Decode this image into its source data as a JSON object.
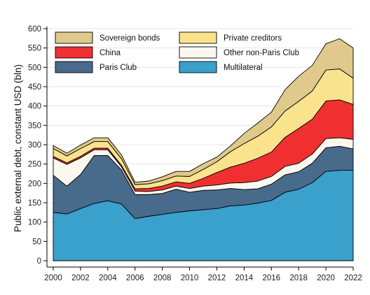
{
  "chart_data": {
    "type": "area",
    "stacked": true,
    "ylabel": "Public external debt, constant USD (bln)",
    "xlabel": "",
    "ylim": [
      0,
      600
    ],
    "yticks": [
      0,
      50,
      100,
      150,
      200,
      250,
      300,
      350,
      400,
      450,
      500,
      550,
      600
    ],
    "xlim": [
      2000,
      2022
    ],
    "xticks": [
      2000,
      2002,
      2004,
      2006,
      2008,
      2010,
      2012,
      2014,
      2016,
      2018,
      2020,
      2022
    ],
    "grid": true,
    "legend_position": "top, inside plot, two columns",
    "x": [
      2000,
      2001,
      2002,
      2003,
      2004,
      2005,
      2006,
      2007,
      2008,
      2009,
      2010,
      2011,
      2012,
      2013,
      2014,
      2015,
      2016,
      2017,
      2018,
      2019,
      2020,
      2021,
      2022
    ],
    "series": [
      {
        "name": "Multilateral",
        "color": "#3aa0cc",
        "values": [
          125,
          121,
          135,
          148,
          155,
          147,
          109,
          115,
          120,
          125,
          129,
          132,
          135,
          142,
          144,
          149,
          156,
          177,
          185,
          202,
          231,
          234,
          234
        ]
      },
      {
        "name": "Paris Club",
        "color": "#486b8c",
        "values": [
          96,
          72,
          88,
          124,
          117,
          88,
          62,
          56,
          54,
          60,
          48,
          50,
          48,
          45,
          40,
          37,
          42,
          45,
          45,
          50,
          61,
          62,
          55
        ]
      },
      {
        "name": "Other non-Paris Club",
        "color": "#fdf8ef",
        "values": [
          45,
          56,
          43,
          15,
          15,
          8,
          9,
          8,
          9,
          8,
          10,
          11,
          13,
          14,
          18,
          20,
          20,
          22,
          22,
          24,
          24,
          22,
          25
        ]
      },
      {
        "name": "China",
        "color": "#f03030",
        "values": [
          4,
          4,
          4,
          4,
          4,
          4,
          6,
          8,
          10,
          11,
          13,
          20,
          32,
          41,
          50,
          59,
          63,
          75,
          90,
          90,
          97,
          98,
          90
        ]
      },
      {
        "name": "Private creditors",
        "color": "#fbe38e",
        "values": [
          20,
          18,
          20,
          17,
          17,
          17,
          11,
          12,
          14,
          15,
          18,
          23,
          28,
          40,
          51,
          57,
          65,
          68,
          70,
          73,
          80,
          80,
          68
        ]
      },
      {
        "name": "Sovereign bonds",
        "color": "#dfc98b",
        "values": [
          8,
          7,
          9,
          10,
          10,
          10,
          6,
          7,
          10,
          12,
          13,
          15,
          12,
          15,
          26,
          34,
          38,
          55,
          65,
          66,
          68,
          78,
          78
        ]
      }
    ],
    "legend_order": [
      "Sovereign bonds",
      "Private creditors",
      "China",
      "Other non-Paris Club",
      "Paris Club",
      "Multilateral"
    ]
  }
}
